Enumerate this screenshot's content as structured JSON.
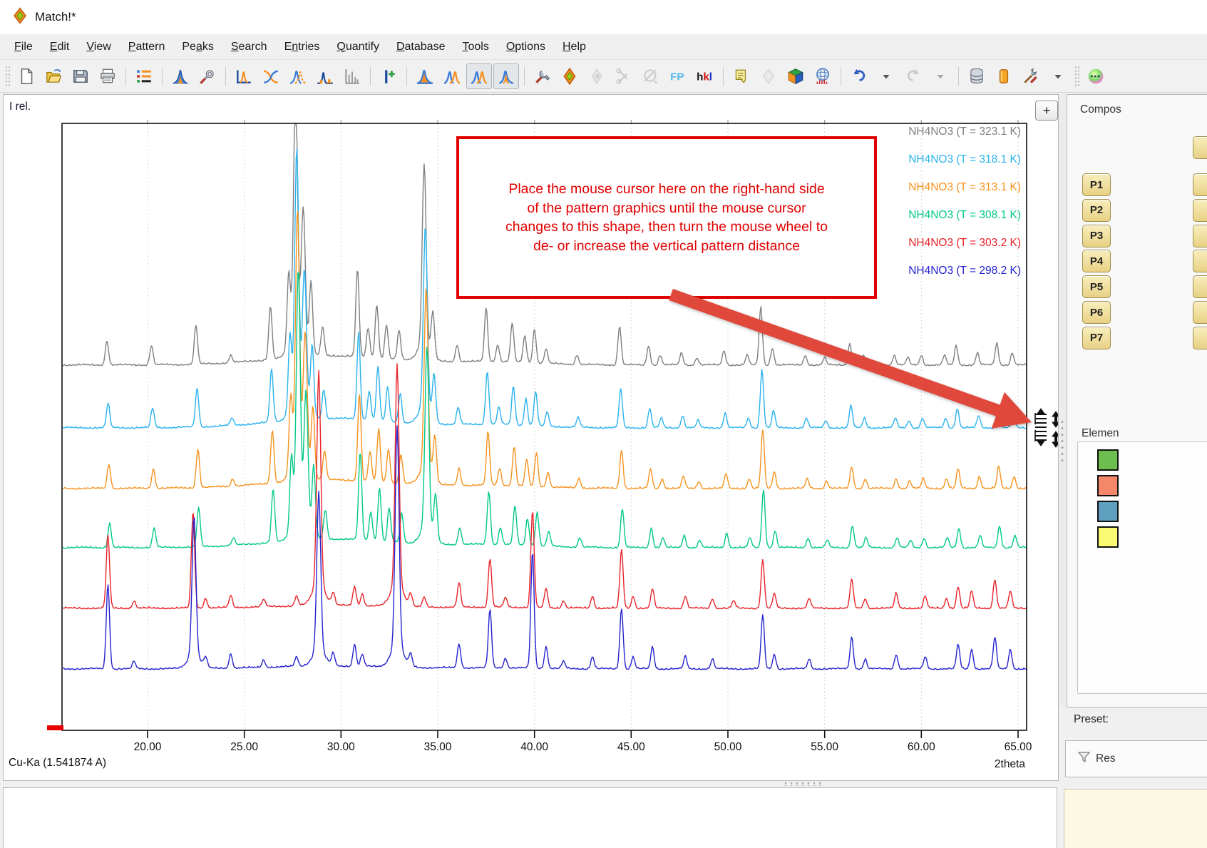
{
  "window": {
    "title": "Match!*",
    "logo_icon": "match-diamond-icon"
  },
  "menu": {
    "items": [
      {
        "label": "File",
        "mnemonic": 0
      },
      {
        "label": "Edit",
        "mnemonic": 0
      },
      {
        "label": "View",
        "mnemonic": 0
      },
      {
        "label": "Pattern",
        "mnemonic": 0
      },
      {
        "label": "Peaks",
        "mnemonic": 2
      },
      {
        "label": "Search",
        "mnemonic": 0
      },
      {
        "label": "Entries",
        "mnemonic": 1
      },
      {
        "label": "Quantify",
        "mnemonic": 0
      },
      {
        "label": "Database",
        "mnemonic": 0
      },
      {
        "label": "Tools",
        "mnemonic": 0
      },
      {
        "label": "Options",
        "mnemonic": 0
      },
      {
        "label": "Help",
        "mnemonic": 0
      }
    ]
  },
  "toolbar": {
    "items": [
      {
        "type": "grip"
      },
      {
        "type": "icon",
        "name": "new-document-icon"
      },
      {
        "type": "icon",
        "name": "open-folder-icon"
      },
      {
        "type": "icon",
        "name": "save-icon"
      },
      {
        "type": "icon",
        "name": "print-icon"
      },
      {
        "type": "sep"
      },
      {
        "type": "icon",
        "name": "pattern-list-icon"
      },
      {
        "type": "sep"
      },
      {
        "type": "icon",
        "name": "peak-fill-icon"
      },
      {
        "type": "icon",
        "name": "search-settings-icon"
      },
      {
        "type": "sep"
      },
      {
        "type": "icon",
        "name": "peak-baseline-icon"
      },
      {
        "type": "icon",
        "name": "peak-crossed-icon"
      },
      {
        "type": "icon",
        "name": "peak-dashed-pair-icon"
      },
      {
        "type": "icon",
        "name": "peak-satellites-icon"
      },
      {
        "type": "icon",
        "name": "bar-graph-icon"
      },
      {
        "type": "sep"
      },
      {
        "type": "icon",
        "name": "add-peak-icon"
      },
      {
        "type": "sep"
      },
      {
        "type": "icon",
        "name": "peak-orange-icon"
      },
      {
        "type": "icon",
        "name": "peak-pair-icon"
      },
      {
        "type": "icon",
        "name": "peak-pair-icon",
        "pressed": true
      },
      {
        "type": "icon",
        "name": "peak-narrow-icon",
        "pressed": true
      },
      {
        "type": "sep"
      },
      {
        "type": "icon",
        "name": "tools-icon"
      },
      {
        "type": "icon",
        "name": "match-diamond-icon"
      },
      {
        "type": "icon",
        "name": "diamond-arrow-icon",
        "disabled": true
      },
      {
        "type": "icon",
        "name": "scissors-icon",
        "disabled": true
      },
      {
        "type": "icon",
        "name": "exclude-icon",
        "disabled": true
      },
      {
        "type": "icon",
        "name": "fp-icon"
      },
      {
        "type": "icon",
        "name": "hkl-icon"
      },
      {
        "type": "sep"
      },
      {
        "type": "icon",
        "name": "report-icon"
      },
      {
        "type": "icon",
        "name": "diamond-faded-icon",
        "disabled": true
      },
      {
        "type": "icon",
        "name": "cube-icon"
      },
      {
        "type": "icon",
        "name": "structure-sphere-icon"
      },
      {
        "type": "sep"
      },
      {
        "type": "icon",
        "name": "undo-icon"
      },
      {
        "type": "icon",
        "name": "caret-down-icon"
      },
      {
        "type": "icon",
        "name": "redo-icon",
        "disabled": true
      },
      {
        "type": "icon",
        "name": "caret-down-icon",
        "disabled": true
      },
      {
        "type": "sep"
      },
      {
        "type": "icon",
        "name": "database-icon"
      },
      {
        "type": "icon",
        "name": "entry-cylinder-icon"
      },
      {
        "type": "icon",
        "name": "toolbox-icon"
      },
      {
        "type": "icon",
        "name": "caret-down-icon"
      },
      {
        "type": "grip"
      },
      {
        "type": "icon",
        "name": "color-sphere-icon"
      }
    ]
  },
  "chart_panel": {
    "ylabel_display": "I rel.",
    "plus_button": "+"
  },
  "chart_data": {
    "type": "line",
    "title": "",
    "xlabel": "2theta",
    "ylabel": "I rel.",
    "x_source_label": "Cu-Ka (1.541874 A)",
    "xlim": [
      15.6,
      65.44
    ],
    "x_ticks": [
      20,
      25,
      30,
      35,
      40,
      45,
      50,
      55,
      60,
      65
    ],
    "x_tick_labels": [
      "20.00",
      "25.00",
      "30.00",
      "35.00",
      "40.00",
      "45.00",
      "50.00",
      "55.00",
      "60.00",
      "65.00"
    ],
    "grid": "vertical-dotted",
    "legend_position": "top-right",
    "peak_sets": {
      "high_temp": [
        [
          17.9,
          10
        ],
        [
          20.2,
          8
        ],
        [
          22.5,
          16
        ],
        [
          24.3,
          3
        ],
        [
          26.35,
          22
        ],
        [
          27.3,
          30
        ],
        [
          27.65,
          100
        ],
        [
          28.05,
          52
        ],
        [
          28.45,
          28
        ],
        [
          29.05,
          12
        ],
        [
          30.85,
          36
        ],
        [
          31.4,
          12
        ],
        [
          31.85,
          22
        ],
        [
          32.35,
          14
        ],
        [
          33.0,
          12
        ],
        [
          34.3,
          74
        ],
        [
          34.75,
          18
        ],
        [
          36.0,
          7
        ],
        [
          37.5,
          22
        ],
        [
          38.1,
          7
        ],
        [
          38.85,
          16
        ],
        [
          39.5,
          11
        ],
        [
          40.0,
          14
        ],
        [
          40.6,
          6
        ],
        [
          42.2,
          4
        ],
        [
          44.4,
          16
        ],
        [
          45.9,
          8
        ],
        [
          46.5,
          4
        ],
        [
          47.6,
          5
        ],
        [
          48.4,
          3
        ],
        [
          49.8,
          6
        ],
        [
          51.0,
          4
        ],
        [
          51.7,
          24
        ],
        [
          52.3,
          7
        ],
        [
          54.0,
          4
        ],
        [
          55.0,
          3
        ],
        [
          56.3,
          9
        ],
        [
          57.0,
          4
        ],
        [
          58.6,
          4
        ],
        [
          59.3,
          3
        ],
        [
          60.0,
          4
        ],
        [
          61.2,
          4
        ],
        [
          61.8,
          8
        ],
        [
          62.9,
          5
        ],
        [
          63.9,
          9
        ],
        [
          64.7,
          5
        ]
      ],
      "low_temp_red": [
        [
          17.95,
          30
        ],
        [
          19.3,
          3
        ],
        [
          22.35,
          40
        ],
        [
          23.0,
          4
        ],
        [
          24.3,
          5
        ],
        [
          26.0,
          3
        ],
        [
          27.7,
          4
        ],
        [
          28.85,
          88
        ],
        [
          29.6,
          5
        ],
        [
          30.7,
          8
        ],
        [
          31.1,
          5
        ],
        [
          32.9,
          91
        ],
        [
          33.6,
          5
        ],
        [
          34.3,
          4
        ],
        [
          36.1,
          10
        ],
        [
          37.7,
          20
        ],
        [
          38.5,
          4
        ],
        [
          39.9,
          40
        ],
        [
          40.6,
          8
        ],
        [
          41.5,
          3
        ],
        [
          43.0,
          5
        ],
        [
          44.5,
          24
        ],
        [
          45.1,
          5
        ],
        [
          46.1,
          8
        ],
        [
          47.8,
          5
        ],
        [
          49.2,
          4
        ],
        [
          50.3,
          3
        ],
        [
          51.8,
          20
        ],
        [
          52.4,
          6
        ],
        [
          54.2,
          4
        ],
        [
          56.4,
          12
        ],
        [
          57.1,
          4
        ],
        [
          58.7,
          6
        ],
        [
          60.2,
          5
        ],
        [
          61.3,
          4
        ],
        [
          61.9,
          9
        ],
        [
          62.6,
          7
        ],
        [
          63.8,
          12
        ],
        [
          64.6,
          7
        ]
      ],
      "low_temp_blue": [
        [
          17.95,
          35
        ],
        [
          19.3,
          3
        ],
        [
          22.4,
          57
        ],
        [
          23.0,
          4
        ],
        [
          24.3,
          6
        ],
        [
          26.0,
          3
        ],
        [
          27.7,
          4
        ],
        [
          28.85,
          65
        ],
        [
          29.6,
          5
        ],
        [
          30.7,
          9
        ],
        [
          31.1,
          5
        ],
        [
          32.9,
          90
        ],
        [
          33.6,
          5
        ],
        [
          36.1,
          10
        ],
        [
          37.7,
          24
        ],
        [
          38.5,
          4
        ],
        [
          39.9,
          48
        ],
        [
          40.6,
          9
        ],
        [
          41.5,
          3
        ],
        [
          43.0,
          5
        ],
        [
          44.5,
          25
        ],
        [
          45.1,
          5
        ],
        [
          46.1,
          9
        ],
        [
          47.8,
          5
        ],
        [
          49.2,
          4
        ],
        [
          51.8,
          22
        ],
        [
          52.4,
          6
        ],
        [
          54.2,
          4
        ],
        [
          56.4,
          13
        ],
        [
          57.1,
          4
        ],
        [
          58.7,
          6
        ],
        [
          60.2,
          5
        ],
        [
          61.9,
          10
        ],
        [
          62.6,
          8
        ],
        [
          63.8,
          13
        ],
        [
          64.6,
          8
        ]
      ]
    },
    "series": [
      {
        "label": "NH4NO3 (T = 323.1 K)",
        "color": "#7f7f7f",
        "peak_set": "high_temp",
        "shift": 0.0,
        "row": 0,
        "diffuse": 13
      },
      {
        "label": "NH4NO3 (T = 318.1 K)",
        "color": "#29b2ee",
        "peak_set": "high_temp",
        "shift": 0.06,
        "row": 1,
        "diffuse": 13
      },
      {
        "label": "NH4NO3 (T = 313.1 K)",
        "color": "#f6921e",
        "peak_set": "high_temp",
        "shift": 0.1,
        "row": 2,
        "diffuse": 12
      },
      {
        "label": "NH4NO3 (T = 308.1 K)",
        "color": "#02c887",
        "peak_set": "high_temp",
        "shift": 0.14,
        "row": 3,
        "diffuse": 12
      },
      {
        "label": "NH4NO3 (T = 303.2 K)",
        "color": "#e8232a",
        "peak_set": "low_temp_red",
        "shift": 0.0,
        "row": 4,
        "diffuse": 4
      },
      {
        "label": "NH4NO3 (T = 298.2 K)",
        "color": "#2422cf",
        "peak_set": "low_temp_blue",
        "shift": 0.0,
        "row": 5,
        "diffuse": 4
      }
    ]
  },
  "annotation": {
    "lines": [
      "Place the mouse cursor here on the right-hand side",
      "of the pattern graphics until the mouse cursor",
      "changes to this shape, then turn the mouse wheel to",
      "de- or increase the vertical pattern distance"
    ],
    "border_color": "#e10000",
    "text_color": "#e10000"
  },
  "arrow": {
    "color": "#e0483c"
  },
  "cursor_hint": {
    "name": "row-distance-cursor-icon"
  },
  "right_panel": {
    "header": "Compos",
    "p_buttons": [
      "P1",
      "P2",
      "P3",
      "P4",
      "P5",
      "P6",
      "P7"
    ],
    "elements_label": "Elemen",
    "element_colors": [
      "#6cbf4f",
      "#f4876a",
      "#5f9fc0",
      "#fafa72"
    ],
    "preset_label": "Preset:",
    "results_label": "Res"
  }
}
